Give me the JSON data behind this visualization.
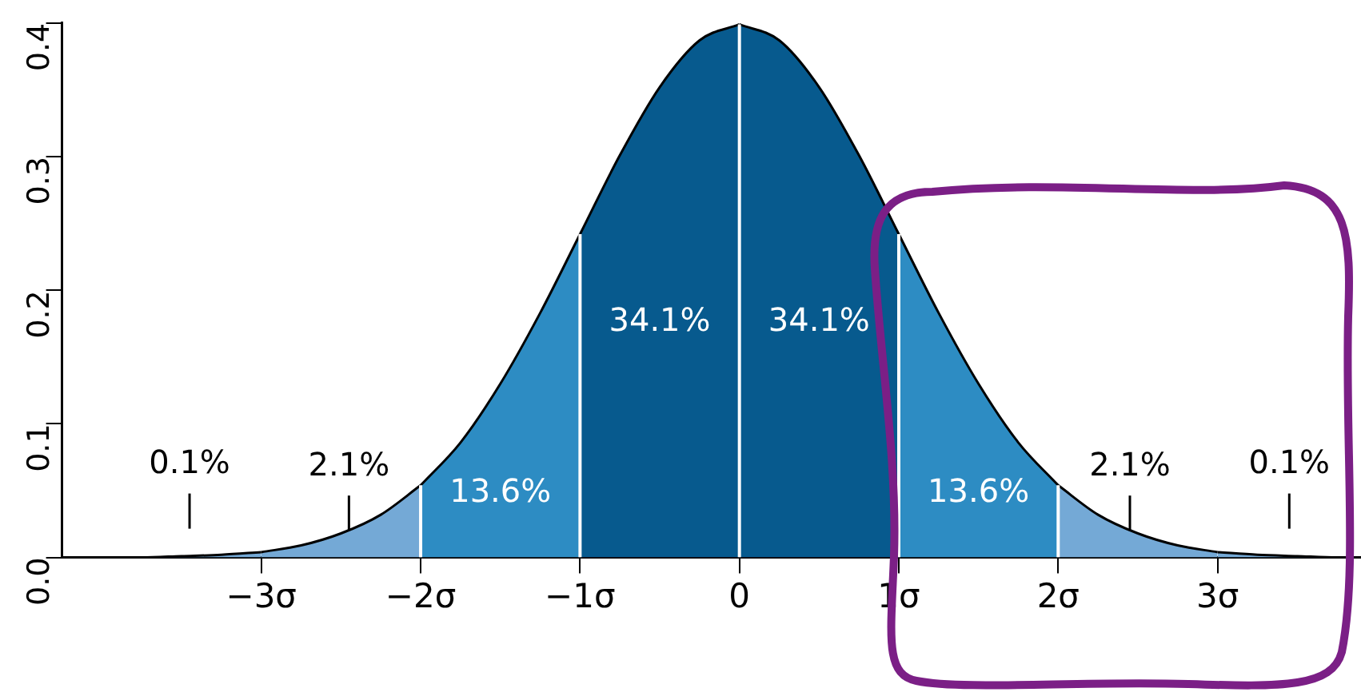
{
  "chart_data": {
    "type": "area",
    "series": [
      {
        "color": "#74a9d6",
        "x": [
          -3.9,
          -3.75,
          -3.5,
          -3.25,
          -3
        ],
        "values": [
          0.0,
          0.0,
          0.001,
          0.002,
          0.004
        ]
      },
      {
        "color": "#74a9d6",
        "x": [
          -3,
          -2.75,
          -2.5,
          -2.25,
          -2
        ],
        "values": [
          0.004,
          0.009,
          0.018,
          0.032,
          0.054
        ]
      },
      {
        "color": "#2d8cc3",
        "x": [
          -2,
          -1.75,
          -1.5,
          -1.25,
          -1
        ],
        "values": [
          0.054,
          0.086,
          0.13,
          0.183,
          0.242
        ]
      },
      {
        "color": "#075a8e",
        "x": [
          -1,
          -0.75,
          -0.5,
          -0.25,
          0
        ],
        "values": [
          0.242,
          0.301,
          0.352,
          0.387,
          0.399
        ]
      },
      {
        "color": "#075a8e",
        "x": [
          0,
          0.25,
          0.5,
          0.75,
          1
        ],
        "values": [
          0.399,
          0.387,
          0.352,
          0.301,
          0.242
        ]
      },
      {
        "color": "#2d8cc3",
        "x": [
          1,
          1.25,
          1.5,
          1.75,
          2
        ],
        "values": [
          0.242,
          0.183,
          0.13,
          0.086,
          0.054
        ]
      },
      {
        "color": "#74a9d6",
        "x": [
          2,
          2.25,
          2.5,
          2.75,
          3
        ],
        "values": [
          0.054,
          0.032,
          0.018,
          0.009,
          0.004
        ]
      },
      {
        "color": "#74a9d6",
        "x": [
          3,
          3.25,
          3.5,
          3.75,
          3.9
        ],
        "values": [
          0.004,
          0.002,
          0.001,
          0.0,
          0.0
        ]
      }
    ],
    "xlim": [
      -4.25,
      3.9
    ],
    "xticks": [
      {
        "value": -3,
        "label": "−3σ"
      },
      {
        "value": -2,
        "label": "−2σ"
      },
      {
        "value": -1,
        "label": "−1σ"
      },
      0,
      {
        "value": 1,
        "label": "1σ"
      },
      {
        "value": 2,
        "label": "2σ"
      },
      {
        "value": 3,
        "label": "3σ"
      }
    ],
    "ylim": [
      0,
      0.4
    ],
    "yticks": [
      {
        "value": 0,
        "label": "0.0"
      },
      0.1,
      0.2,
      0.3,
      0.4
    ],
    "grid": false,
    "legend": false,
    "annotations": [
      "0.1%",
      {
        "text": "2.1%",
        "x": -2.45,
        "y": 0.02
      },
      "13.6%",
      "34.1%",
      "34.1%",
      "13.6%",
      {
        "text": "2.1%",
        "x": 2.45,
        "y": 0.02
      },
      "0.1%"
    ],
    "ref_lines": [
      {
        "axis": "x",
        "value": -2,
        "color": "#ffffff"
      },
      {
        "axis": "x",
        "value": -1,
        "color": "#ffffff"
      },
      {
        "axis": "x",
        "value": 0,
        "color": "#ffffff"
      },
      {
        "axis": "x",
        "value": 1,
        "color": "#ffffff"
      },
      {
        "axis": "x",
        "value": 2,
        "color": "#ffffff"
      }
    ]
  }
}
